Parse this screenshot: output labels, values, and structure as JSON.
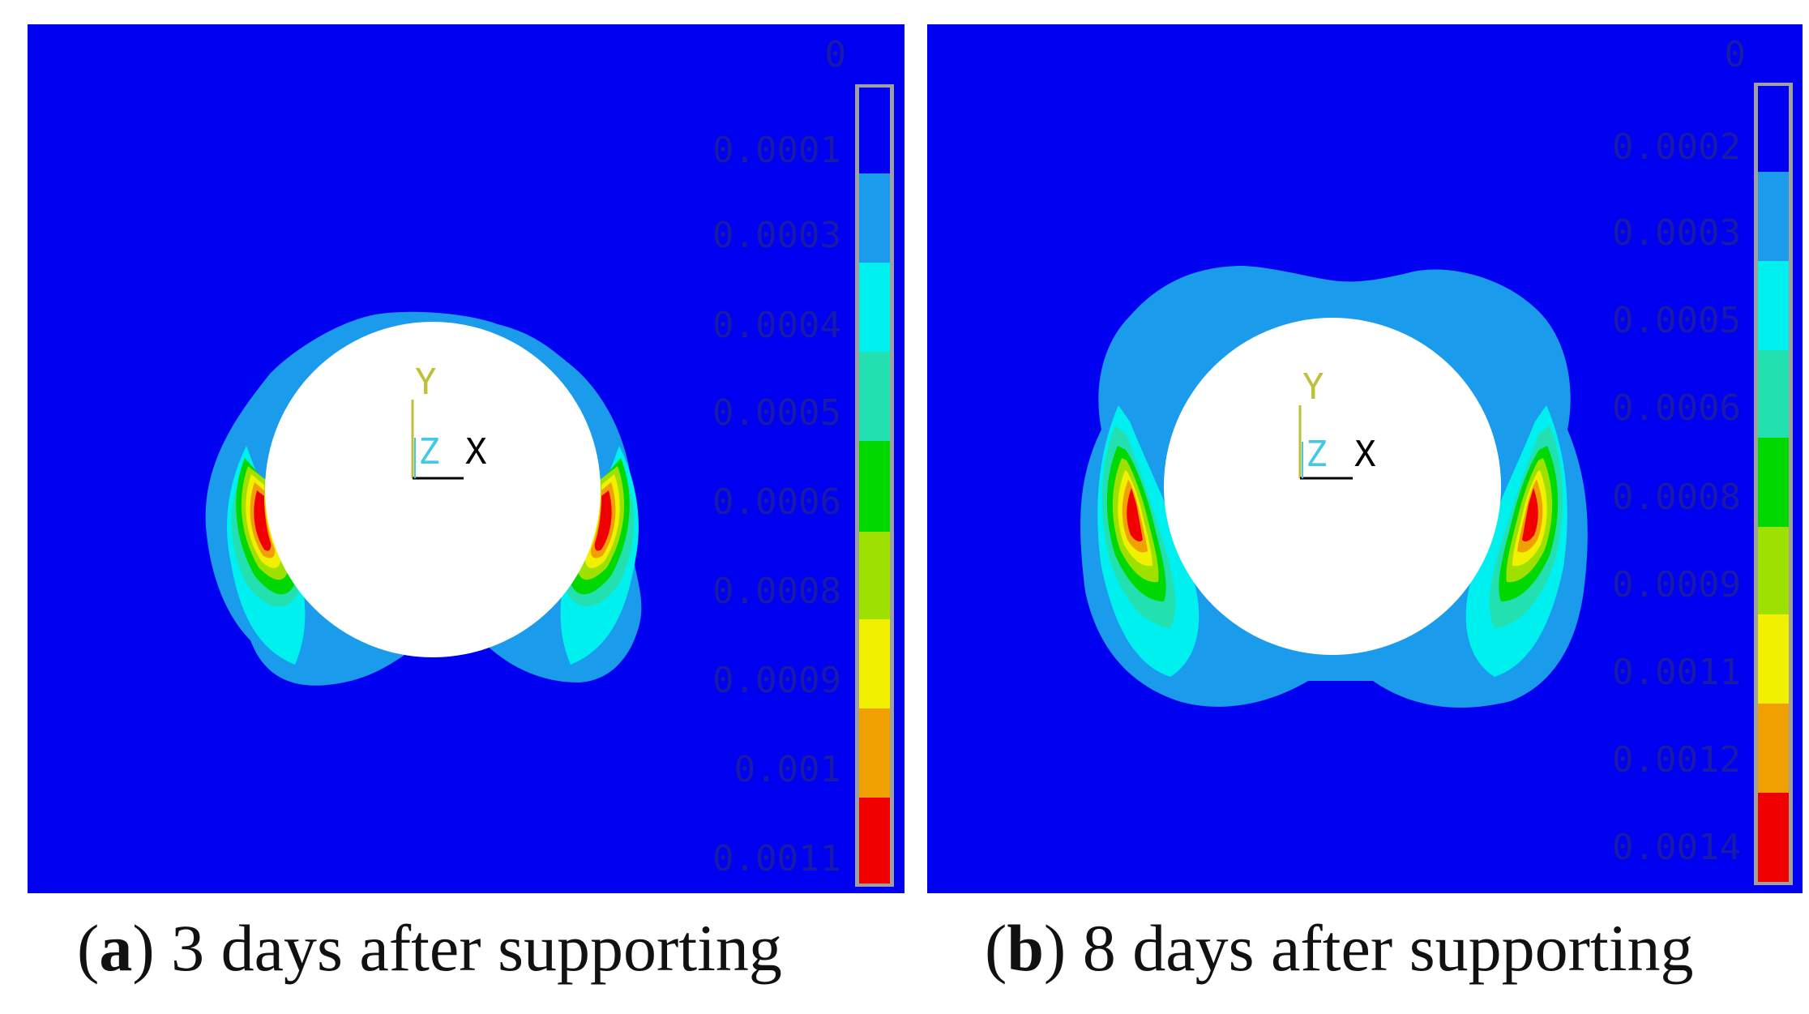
{
  "figure": {
    "panels": [
      {
        "id": "a",
        "caption_letter": "a",
        "caption_text": " 3 days after supporting",
        "legend_values": [
          "0",
          "0.0001",
          "0.0003",
          "0.0004",
          "0.0005",
          "0.0006",
          "0.0008",
          "0.0009",
          "0.001",
          "0.0011"
        ],
        "axis": {
          "y": "Y",
          "z": "Z",
          "x": "X"
        }
      },
      {
        "id": "b",
        "caption_letter": "b",
        "caption_text": " 8 days after supporting",
        "legend_values": [
          "0",
          "0.0002",
          "0.0003",
          "0.0005",
          "0.0006",
          "0.0008",
          "0.0009",
          "0.0011",
          "0.0012",
          "0.0014"
        ],
        "axis": {
          "y": "Y",
          "z": "Z",
          "x": "X"
        }
      }
    ],
    "colors": {
      "background": "#0000f0",
      "band_blue": "#0000f0",
      "band_lightblue": "#1a9bec",
      "band_cyan": "#00f0f0",
      "band_aqua": "#22e0b0",
      "band_green": "#00d800",
      "band_lime": "#9ee000",
      "band_yellow": "#f0f000",
      "band_orange": "#f0a000",
      "band_red": "#f00000",
      "opening": "#ffffff"
    }
  }
}
